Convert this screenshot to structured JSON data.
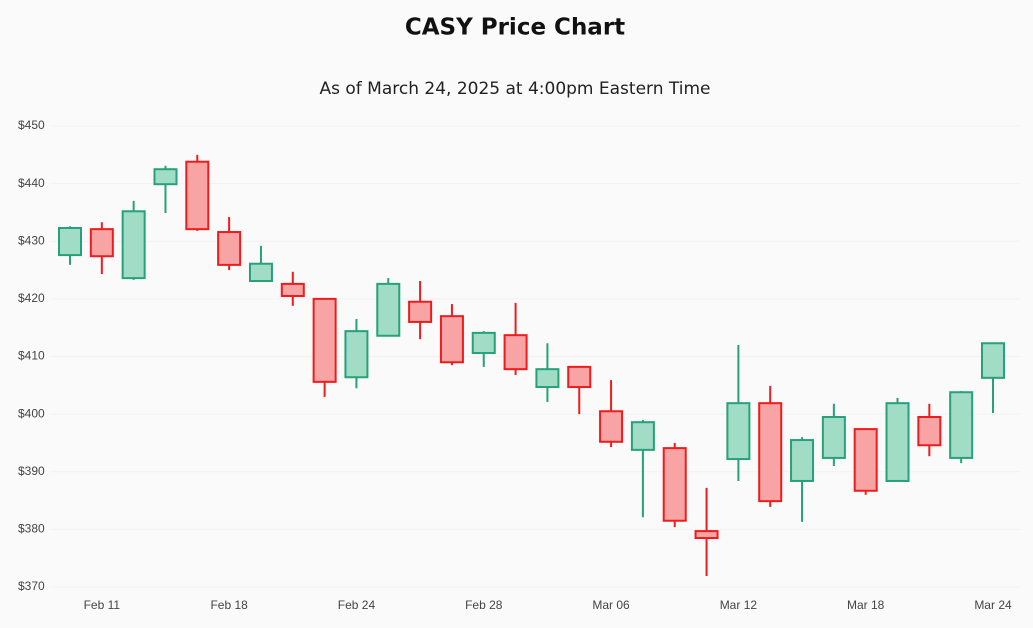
{
  "chart_data": {
    "type": "candlestick",
    "title": "CASY Price Chart",
    "subtitle": "As of March 24, 2025 at 4:00pm Eastern Time",
    "categories": [
      null,
      "Feb 11",
      null,
      null,
      null,
      "Feb 18",
      null,
      null,
      null,
      "Feb 24",
      null,
      null,
      null,
      "Feb 28",
      null,
      null,
      null,
      "Mar 06",
      null,
      null,
      null,
      "Mar 12",
      null,
      null,
      null,
      "Mar 18",
      null,
      null,
      null,
      "Mar 24"
    ],
    "open": [
      427.6,
      432.1,
      423.6,
      439.9,
      443.8,
      431.6,
      423.1,
      422.6,
      420.0,
      406.4,
      413.6,
      419.5,
      417.0,
      410.6,
      413.7,
      404.7,
      408.2,
      400.5,
      393.8,
      394.1,
      379.7,
      392.2,
      401.9,
      388.4,
      392.4,
      397.4,
      388.4,
      399.5,
      392.4,
      406.3
    ],
    "high": [
      432.6,
      433.3,
      437.0,
      443.1,
      445.0,
      434.2,
      429.2,
      424.7,
      420.0,
      416.5,
      423.6,
      423.1,
      419.1,
      414.4,
      419.3,
      412.3,
      408.2,
      405.9,
      399.0,
      395.0,
      387.2,
      412.0,
      404.9,
      396.0,
      401.8,
      397.4,
      402.8,
      401.8,
      404.0,
      412.3
    ],
    "low": [
      425.9,
      424.3,
      423.3,
      434.9,
      431.8,
      425.0,
      423.1,
      418.8,
      403.0,
      404.5,
      413.6,
      413.0,
      408.5,
      408.2,
      406.8,
      402.1,
      400.0,
      394.3,
      382.1,
      380.4,
      371.9,
      388.4,
      383.9,
      381.3,
      391.0,
      386.0,
      388.4,
      392.7,
      391.5,
      400.2
    ],
    "close": [
      432.3,
      427.4,
      435.2,
      442.5,
      432.1,
      425.9,
      426.1,
      420.5,
      405.6,
      414.4,
      422.6,
      416.0,
      409.0,
      414.1,
      407.8,
      407.8,
      404.7,
      395.2,
      398.6,
      381.5,
      378.5,
      401.9,
      384.9,
      395.5,
      399.5,
      386.7,
      401.9,
      394.6,
      403.8,
      412.3
    ],
    "up_color": "#26a17a",
    "up_fill": "#a0dcc6",
    "down_color": "#ee1c1c",
    "down_fill": "#f9a4a4",
    "ylim": [
      370,
      450
    ],
    "yticks": [
      {
        "value": 370,
        "label": "$370"
      },
      {
        "value": 380,
        "label": "$380"
      },
      {
        "value": 390,
        "label": "$390"
      },
      {
        "value": 400,
        "label": "$400"
      },
      {
        "value": 410,
        "label": "$410"
      },
      {
        "value": 420,
        "label": "$420"
      },
      {
        "value": 430,
        "label": "$430"
      },
      {
        "value": 440,
        "label": "$440"
      },
      {
        "value": 450,
        "label": "$450"
      }
    ]
  }
}
